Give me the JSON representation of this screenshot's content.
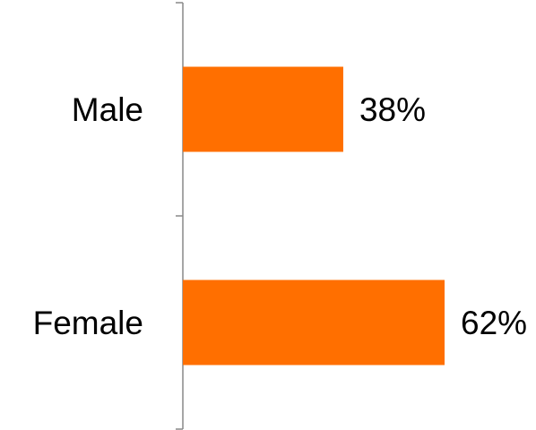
{
  "chart_data": {
    "type": "bar",
    "orientation": "horizontal",
    "categories": [
      "Male",
      "Female"
    ],
    "values": [
      38,
      62
    ],
    "data_labels": [
      "38%",
      "62%"
    ],
    "unit": "%",
    "xlim": [
      0,
      62
    ],
    "grid": false,
    "legend": "none",
    "bar_color": "#FF6F00",
    "axis_color": "#888888"
  }
}
